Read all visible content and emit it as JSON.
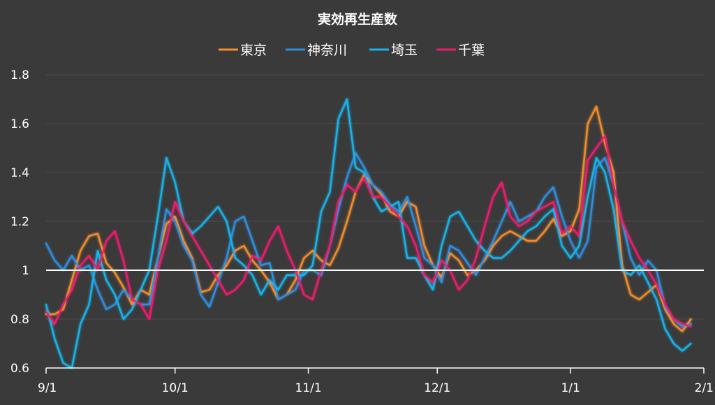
{
  "chart_data": {
    "type": "line",
    "title": "実効再生産数",
    "xlabel": "",
    "ylabel": "",
    "ylim": [
      0.6,
      1.8
    ],
    "yticks": [
      0.6,
      0.8,
      1,
      1.2,
      1.4,
      1.6,
      1.8
    ],
    "ytick_labels": [
      "0.6",
      "0.8",
      "1",
      "1.2",
      "1.4",
      "1.6",
      "1.8"
    ],
    "xlim": [
      "2020-09-01",
      "2021-02-01"
    ],
    "xticks": [
      "2020-09-01",
      "2020-10-01",
      "2020-11-01",
      "2020-12-01",
      "2021-01-01",
      "2021-02-01"
    ],
    "xtick_labels": [
      "9/1",
      "10/1",
      "11/1",
      "12/1",
      "1/1",
      "2/1"
    ],
    "reference_line": {
      "y": 1,
      "color": "#ffffff"
    },
    "grid": true,
    "legend_position": "top",
    "series": [
      {
        "name": "東京",
        "color": "#f28e2b",
        "x": [
          "2020-09-01",
          "2020-09-03",
          "2020-09-05",
          "2020-09-07",
          "2020-09-09",
          "2020-09-11",
          "2020-09-13",
          "2020-09-15",
          "2020-09-17",
          "2020-09-19",
          "2020-09-21",
          "2020-09-23",
          "2020-09-25",
          "2020-09-27",
          "2020-09-29",
          "2020-10-01",
          "2020-10-03",
          "2020-10-05",
          "2020-10-07",
          "2020-10-09",
          "2020-10-11",
          "2020-10-13",
          "2020-10-15",
          "2020-10-17",
          "2020-10-19",
          "2020-10-21",
          "2020-10-23",
          "2020-10-25",
          "2020-10-27",
          "2020-10-29",
          "2020-10-31",
          "2020-11-02",
          "2020-11-04",
          "2020-11-06",
          "2020-11-08",
          "2020-11-10",
          "2020-11-12",
          "2020-11-14",
          "2020-11-16",
          "2020-11-18",
          "2020-11-20",
          "2020-11-22",
          "2020-11-24",
          "2020-11-26",
          "2020-11-28",
          "2020-11-30",
          "2020-12-02",
          "2020-12-04",
          "2020-12-06",
          "2020-12-08",
          "2020-12-10",
          "2020-12-12",
          "2020-12-14",
          "2020-12-16",
          "2020-12-18",
          "2020-12-20",
          "2020-12-22",
          "2020-12-24",
          "2020-12-26",
          "2020-12-28",
          "2020-12-30",
          "2021-01-01",
          "2021-01-03",
          "2021-01-05",
          "2021-01-07",
          "2021-01-09",
          "2021-01-11",
          "2021-01-13",
          "2021-01-15",
          "2021-01-17",
          "2021-01-19",
          "2021-01-21",
          "2021-01-23",
          "2021-01-25",
          "2021-01-27",
          "2021-01-29"
        ],
        "y": [
          0.82,
          0.82,
          0.84,
          0.96,
          1.08,
          1.14,
          1.15,
          1.03,
          0.99,
          0.93,
          0.86,
          0.92,
          0.9,
          1.05,
          1.19,
          1.22,
          1.12,
          1.05,
          0.91,
          0.92,
          0.98,
          1.02,
          1.08,
          1.1,
          1.04,
          1.0,
          0.95,
          0.88,
          0.9,
          0.96,
          1.05,
          1.08,
          1.04,
          1.02,
          1.09,
          1.2,
          1.32,
          1.39,
          1.35,
          1.31,
          1.24,
          1.22,
          1.28,
          1.26,
          1.1,
          1.02,
          0.97,
          1.07,
          1.04,
          0.98,
          1.0,
          1.04,
          1.1,
          1.14,
          1.16,
          1.14,
          1.12,
          1.12,
          1.16,
          1.21,
          1.14,
          1.16,
          1.25,
          1.6,
          1.67,
          1.52,
          1.4,
          1.02,
          0.9,
          0.88,
          0.91,
          0.94,
          0.84,
          0.78,
          0.75,
          0.8
        ]
      },
      {
        "name": "神奈川",
        "color": "#2d8fe0",
        "x": [
          "2020-09-01",
          "2020-09-03",
          "2020-09-05",
          "2020-09-07",
          "2020-09-09",
          "2020-09-11",
          "2020-09-13",
          "2020-09-15",
          "2020-09-17",
          "2020-09-19",
          "2020-09-21",
          "2020-09-23",
          "2020-09-25",
          "2020-09-27",
          "2020-09-29",
          "2020-10-01",
          "2020-10-03",
          "2020-10-05",
          "2020-10-07",
          "2020-10-09",
          "2020-10-11",
          "2020-10-13",
          "2020-10-15",
          "2020-10-17",
          "2020-10-19",
          "2020-10-21",
          "2020-10-23",
          "2020-10-25",
          "2020-10-27",
          "2020-10-29",
          "2020-10-31",
          "2020-11-02",
          "2020-11-04",
          "2020-11-06",
          "2020-11-08",
          "2020-11-10",
          "2020-11-12",
          "2020-11-14",
          "2020-11-16",
          "2020-11-18",
          "2020-11-20",
          "2020-11-22",
          "2020-11-24",
          "2020-11-26",
          "2020-11-28",
          "2020-11-30",
          "2020-12-02",
          "2020-12-04",
          "2020-12-06",
          "2020-12-08",
          "2020-12-10",
          "2020-12-12",
          "2020-12-14",
          "2020-12-16",
          "2020-12-18",
          "2020-12-20",
          "2020-12-22",
          "2020-12-24",
          "2020-12-26",
          "2020-12-28",
          "2020-12-30",
          "2021-01-01",
          "2021-01-03",
          "2021-01-05",
          "2021-01-07",
          "2021-01-09",
          "2021-01-11",
          "2021-01-13",
          "2021-01-15",
          "2021-01-17",
          "2021-01-19",
          "2021-01-21",
          "2021-01-23",
          "2021-01-25",
          "2021-01-27",
          "2021-01-29"
        ],
        "y": [
          1.11,
          1.04,
          1.0,
          1.06,
          1.0,
          1.02,
          0.92,
          0.84,
          0.86,
          0.92,
          0.88,
          0.86,
          0.86,
          1.05,
          1.25,
          1.2,
          1.1,
          1.04,
          0.9,
          0.85,
          0.95,
          1.05,
          1.2,
          1.22,
          1.12,
          1.02,
          1.03,
          0.88,
          0.9,
          0.92,
          1.0,
          1.0,
          0.98,
          1.1,
          1.25,
          1.38,
          1.48,
          1.42,
          1.35,
          1.32,
          1.27,
          1.24,
          1.3,
          1.18,
          1.05,
          1.02,
          0.95,
          1.1,
          1.08,
          1.03,
          0.98,
          1.05,
          1.12,
          1.2,
          1.28,
          1.2,
          1.22,
          1.24,
          1.3,
          1.34,
          1.22,
          1.12,
          1.05,
          1.12,
          1.42,
          1.46,
          1.35,
          1.2,
          1.05,
          0.98,
          1.04,
          1.0,
          0.85,
          0.8,
          0.77,
          0.78
        ]
      },
      {
        "name": "埼玉",
        "color": "#16b4ec",
        "x": [
          "2020-09-01",
          "2020-09-03",
          "2020-09-05",
          "2020-09-07",
          "2020-09-09",
          "2020-09-11",
          "2020-09-13",
          "2020-09-15",
          "2020-09-17",
          "2020-09-19",
          "2020-09-21",
          "2020-09-23",
          "2020-09-25",
          "2020-09-27",
          "2020-09-29",
          "2020-10-01",
          "2020-10-03",
          "2020-10-05",
          "2020-10-07",
          "2020-10-09",
          "2020-10-11",
          "2020-10-13",
          "2020-10-15",
          "2020-10-17",
          "2020-10-19",
          "2020-10-21",
          "2020-10-23",
          "2020-10-25",
          "2020-10-27",
          "2020-10-29",
          "2020-10-31",
          "2020-11-02",
          "2020-11-04",
          "2020-11-06",
          "2020-11-08",
          "2020-11-10",
          "2020-11-12",
          "2020-11-14",
          "2020-11-16",
          "2020-11-18",
          "2020-11-20",
          "2020-11-22",
          "2020-11-24",
          "2020-11-26",
          "2020-11-28",
          "2020-11-30",
          "2020-12-02",
          "2020-12-04",
          "2020-12-06",
          "2020-12-08",
          "2020-12-10",
          "2020-12-12",
          "2020-12-14",
          "2020-12-16",
          "2020-12-18",
          "2020-12-20",
          "2020-12-22",
          "2020-12-24",
          "2020-12-26",
          "2020-12-28",
          "2020-12-30",
          "2021-01-01",
          "2021-01-03",
          "2021-01-05",
          "2021-01-07",
          "2021-01-09",
          "2021-01-11",
          "2021-01-13",
          "2021-01-15",
          "2021-01-17",
          "2021-01-19",
          "2021-01-21",
          "2021-01-23",
          "2021-01-25",
          "2021-01-27",
          "2021-01-29"
        ],
        "y": [
          0.86,
          0.72,
          0.62,
          0.6,
          0.78,
          0.86,
          1.08,
          0.96,
          0.9,
          0.8,
          0.84,
          0.92,
          1.0,
          1.22,
          1.46,
          1.36,
          1.2,
          1.15,
          1.18,
          1.22,
          1.26,
          1.2,
          1.05,
          1.02,
          0.98,
          0.9,
          0.96,
          0.92,
          0.98,
          0.98,
          0.98,
          1.02,
          1.24,
          1.32,
          1.62,
          1.7,
          1.42,
          1.4,
          1.3,
          1.24,
          1.26,
          1.28,
          1.05,
          1.05,
          0.98,
          0.92,
          1.1,
          1.22,
          1.24,
          1.18,
          1.12,
          1.08,
          1.05,
          1.05,
          1.08,
          1.12,
          1.16,
          1.18,
          1.22,
          1.25,
          1.1,
          1.05,
          1.1,
          1.3,
          1.46,
          1.4,
          1.25,
          1.0,
          0.98,
          1.02,
          0.95,
          0.88,
          0.76,
          0.7,
          0.67,
          0.7
        ]
      },
      {
        "name": "千葉",
        "color": "#ee1a6e",
        "x": [
          "2020-09-01",
          "2020-09-03",
          "2020-09-05",
          "2020-09-07",
          "2020-09-09",
          "2020-09-11",
          "2020-09-13",
          "2020-09-15",
          "2020-09-17",
          "2020-09-19",
          "2020-09-21",
          "2020-09-23",
          "2020-09-25",
          "2020-09-27",
          "2020-09-29",
          "2020-10-01",
          "2020-10-03",
          "2020-10-05",
          "2020-10-07",
          "2020-10-09",
          "2020-10-11",
          "2020-10-13",
          "2020-10-15",
          "2020-10-17",
          "2020-10-19",
          "2020-10-21",
          "2020-10-23",
          "2020-10-25",
          "2020-10-27",
          "2020-10-29",
          "2020-10-31",
          "2020-11-02",
          "2020-11-04",
          "2020-11-06",
          "2020-11-08",
          "2020-11-10",
          "2020-11-12",
          "2020-11-14",
          "2020-11-16",
          "2020-11-18",
          "2020-11-20",
          "2020-11-22",
          "2020-11-24",
          "2020-11-26",
          "2020-11-28",
          "2020-11-30",
          "2020-12-02",
          "2020-12-04",
          "2020-12-06",
          "2020-12-08",
          "2020-12-10",
          "2020-12-12",
          "2020-12-14",
          "2020-12-16",
          "2020-12-18",
          "2020-12-20",
          "2020-12-22",
          "2020-12-24",
          "2020-12-26",
          "2020-12-28",
          "2020-12-30",
          "2021-01-01",
          "2021-01-03",
          "2021-01-05",
          "2021-01-07",
          "2021-01-09",
          "2021-01-11",
          "2021-01-13",
          "2021-01-15",
          "2021-01-17",
          "2021-01-19",
          "2021-01-21",
          "2021-01-23",
          "2021-01-25",
          "2021-01-27",
          "2021-01-29"
        ],
        "y": [
          0.83,
          0.78,
          0.86,
          0.92,
          1.02,
          1.06,
          1.0,
          1.12,
          1.16,
          1.04,
          0.88,
          0.86,
          0.8,
          1.0,
          1.12,
          1.28,
          1.2,
          1.14,
          1.08,
          1.02,
          0.96,
          0.9,
          0.92,
          0.96,
          1.06,
          1.04,
          1.12,
          1.18,
          1.08,
          1.0,
          0.9,
          0.88,
          1.0,
          1.1,
          1.28,
          1.35,
          1.32,
          1.38,
          1.3,
          1.3,
          1.26,
          1.22,
          1.18,
          1.1,
          0.98,
          0.95,
          1.04,
          1.0,
          0.92,
          0.96,
          1.05,
          1.18,
          1.3,
          1.36,
          1.22,
          1.18,
          1.2,
          1.24,
          1.26,
          1.28,
          1.15,
          1.18,
          1.14,
          1.45,
          1.5,
          1.55,
          1.35,
          1.2,
          1.12,
          1.05,
          1.0,
          0.94,
          0.86,
          0.8,
          0.78,
          0.77
        ]
      }
    ]
  }
}
